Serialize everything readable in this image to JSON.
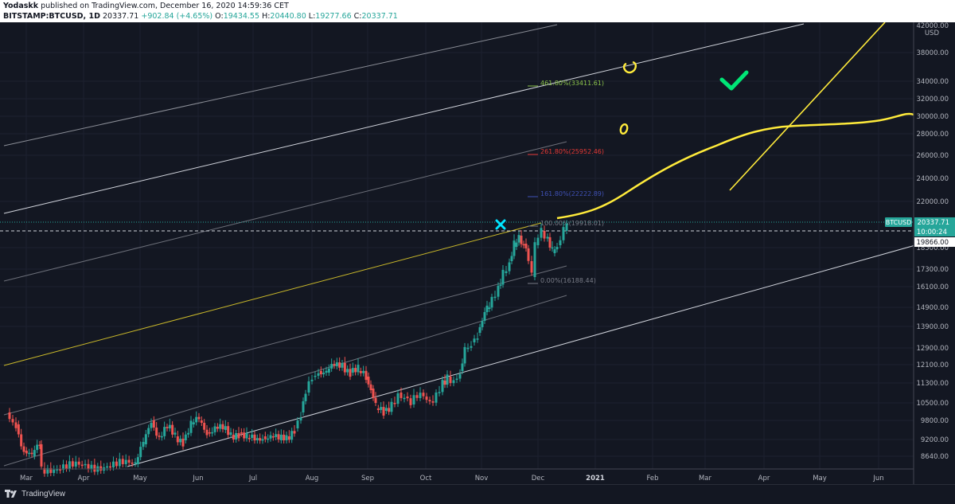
{
  "header": {
    "author": "Yodaskk",
    "published": " published on TradingView.com, December 16, 2020 14:59:36 CET",
    "symbol": "BITSTAMP:BTCUSD, 1D",
    "last": " 20337.71",
    "change": "+902.84 (+4.65%)",
    "o_label": "O:",
    "o": "19434.55",
    "h_label": "H:",
    "h": "20440.80",
    "l_label": "L:",
    "l": "19277.66",
    "c_label": "C:",
    "c": "20337.71"
  },
  "axis": {
    "currency": "USD",
    "ticks": [
      "42000.00",
      "38000.00",
      "34000.00",
      "32000.00",
      "30000.00",
      "28000.00",
      "26000.00",
      "24000.00",
      "22000.00",
      "18500.00",
      "17300.00",
      "16100.00",
      "14900.00",
      "13900.00",
      "12900.00",
      "12100.00",
      "11300.00",
      "10500.00",
      "9800.00",
      "9200.00",
      "8640.00"
    ],
    "months": [
      "Mar",
      "Apr",
      "May",
      "Jun",
      "Jul",
      "Aug",
      "Sep",
      "Oct",
      "Nov",
      "Dec",
      "2021",
      "Feb",
      "Mar",
      "Apr",
      "May",
      "Jun"
    ]
  },
  "price_tags": {
    "symbol": "BTCUSD",
    "last": "20337.71",
    "countdown": "10:00:24",
    "crosshair": "19866.00"
  },
  "fib": [
    {
      "label": "461.80%(33411.61)",
      "color": "#8bc34a"
    },
    {
      "label": "261.80%(25952.46)",
      "color": "#e53935"
    },
    {
      "label": "161.80%(22222.89)",
      "color": "#3f51b5"
    },
    {
      "label": "100.00%(19918.01)",
      "color": "#787b86"
    },
    {
      "label": "0.00%(16188.44)",
      "color": "#787b86"
    }
  ],
  "colors": {
    "up": "#26a69a",
    "down": "#ef5350",
    "annotation": "#ffeb3b",
    "check": "#00e676",
    "cross": "#00e5ff"
  },
  "footer": {
    "brand": "TradingView"
  }
}
